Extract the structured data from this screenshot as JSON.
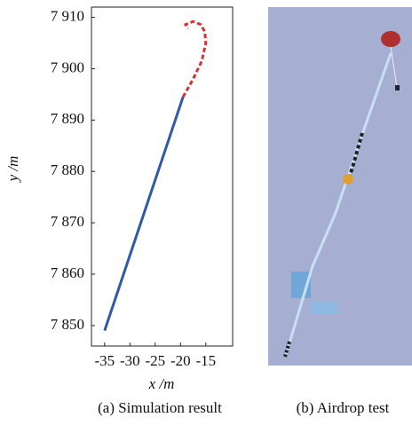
{
  "chart_data": {
    "type": "line",
    "x_label": "x /m",
    "y_label": "y /m",
    "xlim": [
      -37.6,
      -9.7
    ],
    "ylim": [
      7846,
      7912
    ],
    "xticks": [
      -35,
      -30,
      -25,
      -20,
      -15
    ],
    "yticks": [
      {
        "value": 7850,
        "label": "7 850"
      },
      {
        "value": 7860,
        "label": "7 860"
      },
      {
        "value": 7870,
        "label": "7 870"
      },
      {
        "value": 7880,
        "label": "7 880"
      },
      {
        "value": 7890,
        "label": "7 890"
      },
      {
        "value": 7900,
        "label": "7 900"
      },
      {
        "value": 7910,
        "label": "7 910"
      }
    ],
    "series": [
      {
        "color": "#2f5aa8",
        "dashed": false,
        "x": [
          -35,
          -19.5
        ],
        "y": [
          7849,
          7894.5
        ]
      },
      {
        "color": "#d83030",
        "dashed": true,
        "x": [
          -19.5,
          -17.5,
          -15.8,
          -15,
          -15.2,
          -16,
          -17.5,
          -19,
          -18.5
        ],
        "y": [
          7894.5,
          7898,
          7901.5,
          7905,
          7907.2,
          7908.6,
          7909.2,
          7908.6,
          7907.8
        ]
      }
    ]
  },
  "captions": [
    "(a) Simulation result",
    "(b) Airdrop test"
  ]
}
